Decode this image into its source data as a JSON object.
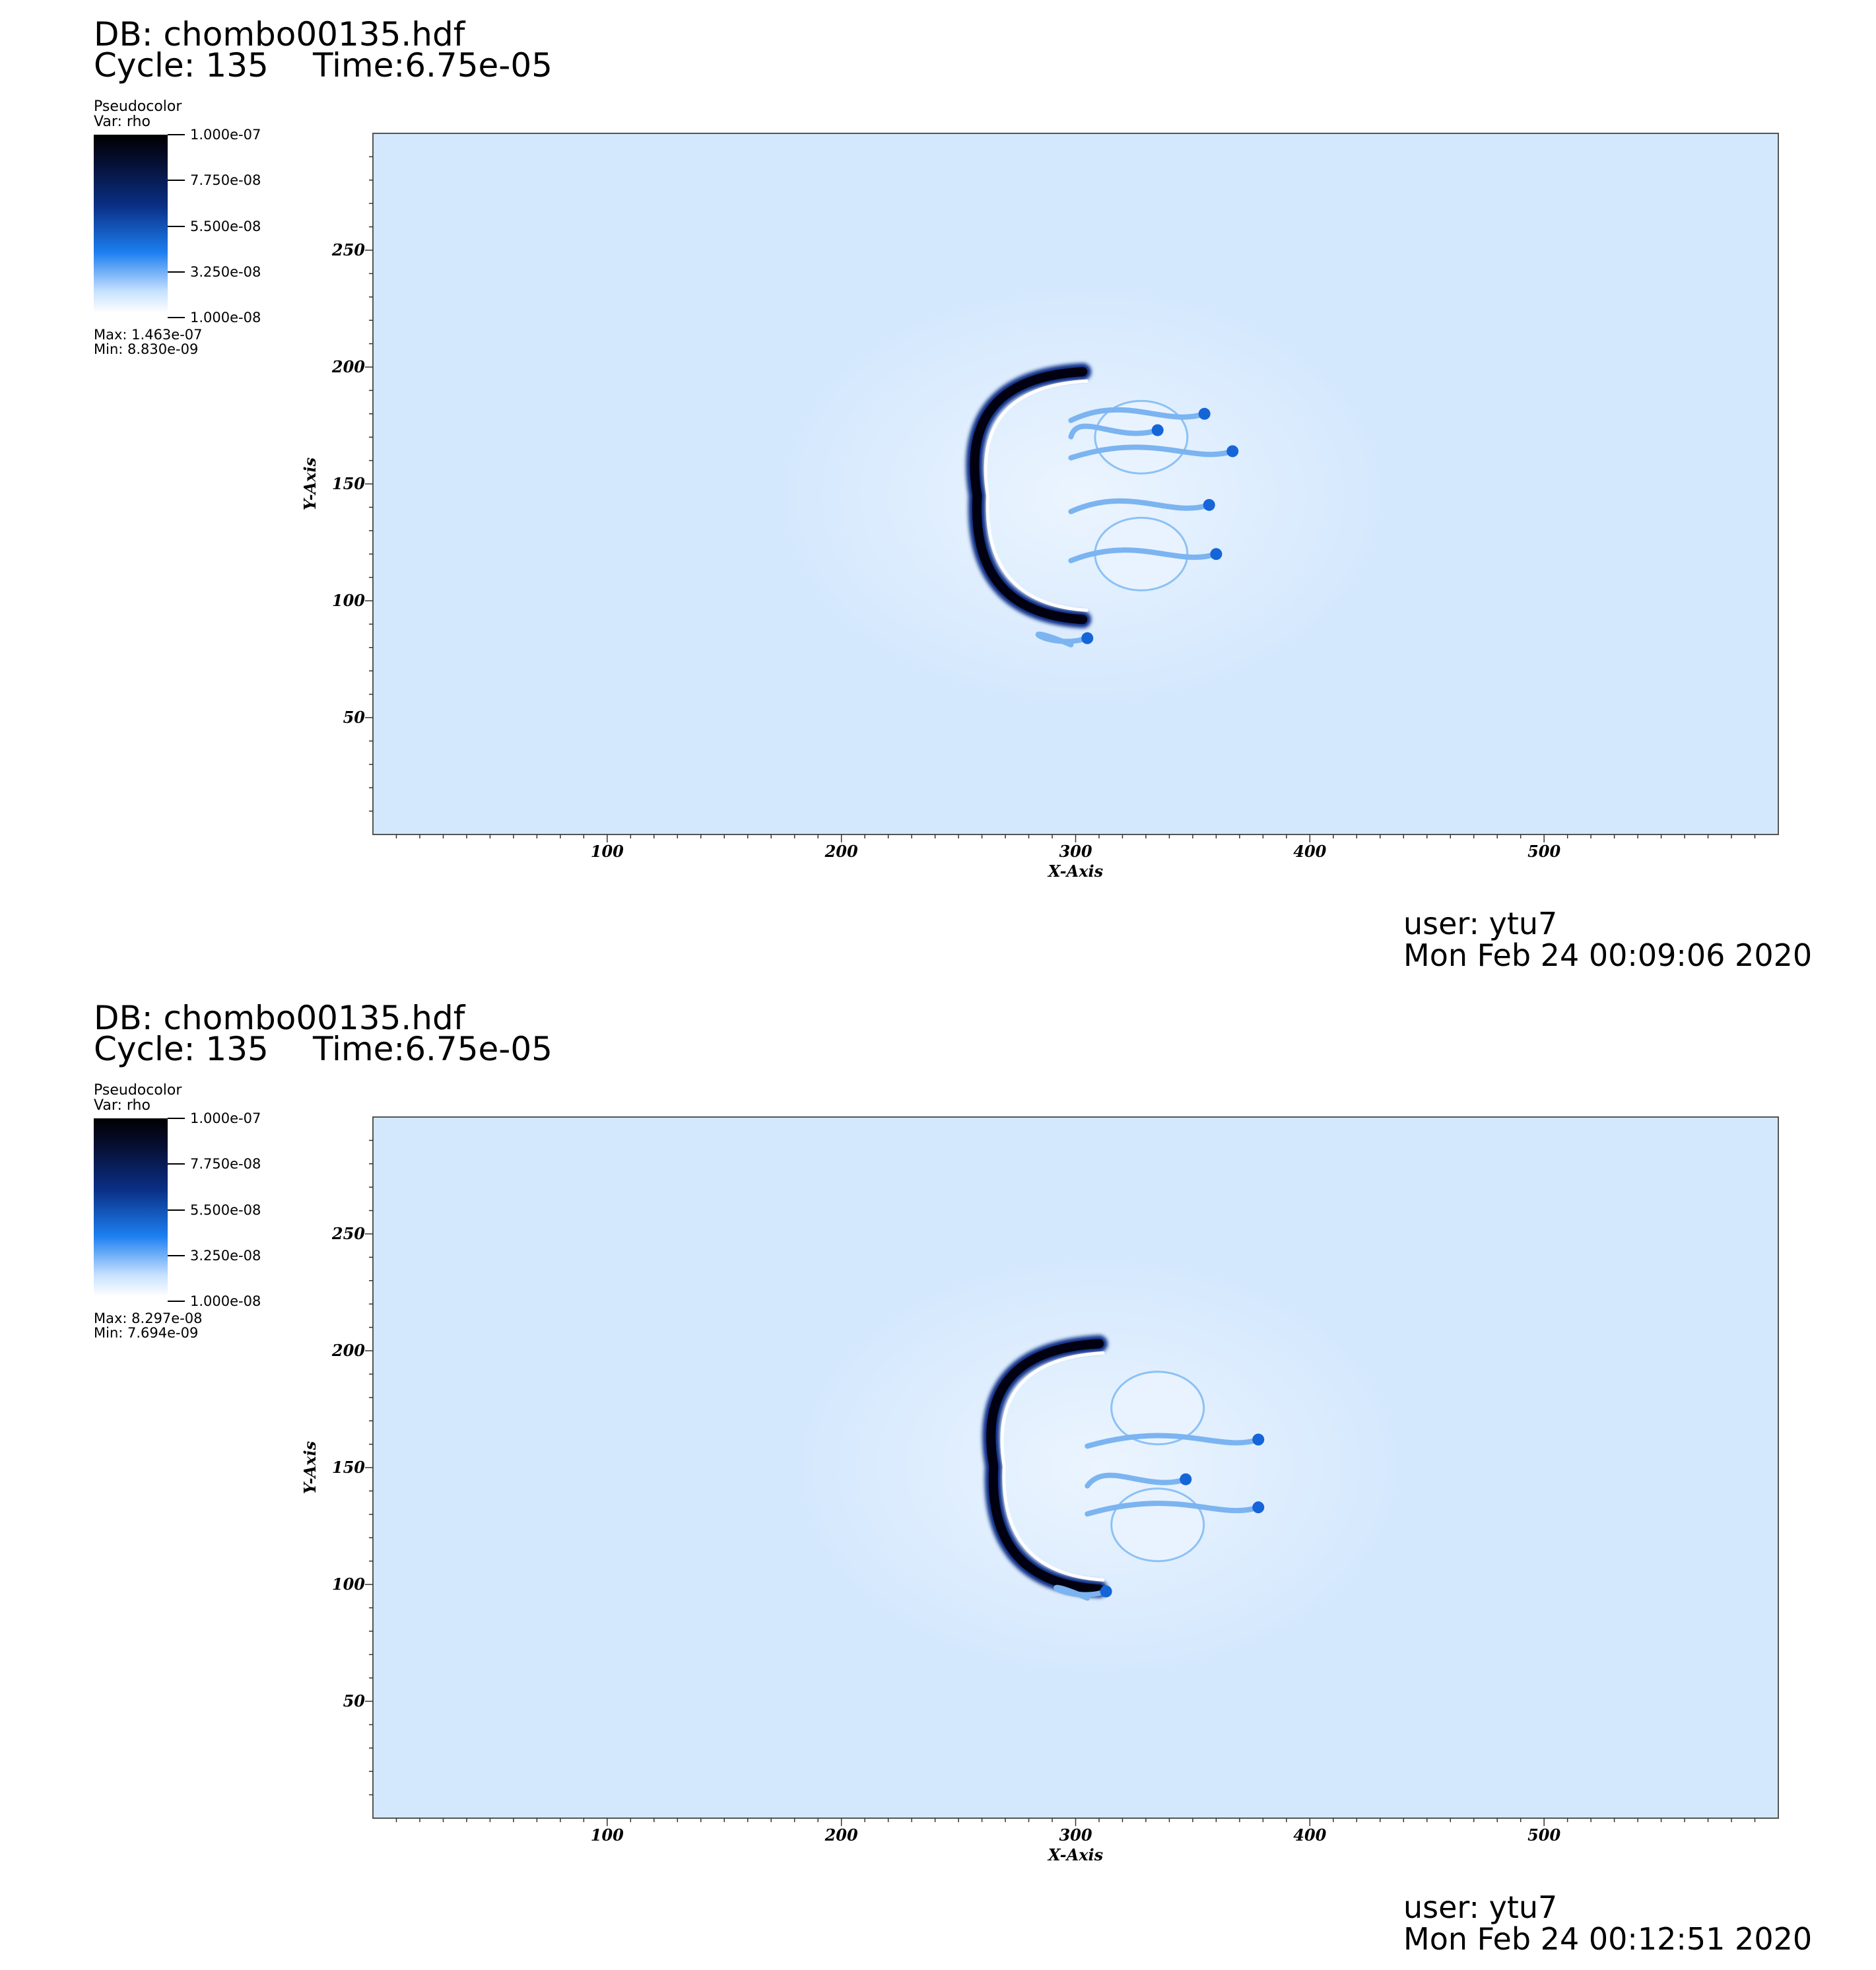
{
  "panels": [
    {
      "db": "DB: chombo00135.hdf",
      "cycle": "Cycle: 135",
      "time": "Time:6.75e-05",
      "legend": {
        "plot_type": "Pseudocolor",
        "var": "Var: rho",
        "ticks": [
          "1.000e-07",
          "7.750e-08",
          "5.500e-08",
          "3.250e-08",
          "1.000e-08"
        ],
        "max": "Max:  1.463e-07",
        "min": "Min:  8.830e-09"
      },
      "user": "user: ytu7",
      "date": "Mon Feb 24 00:09:06 2020"
    },
    {
      "db": "DB: chombo00135.hdf",
      "cycle": "Cycle: 135",
      "time": "Time:6.75e-05",
      "legend": {
        "plot_type": "Pseudocolor",
        "var": "Var: rho",
        "ticks": [
          "1.000e-07",
          "7.750e-08",
          "5.500e-08",
          "3.250e-08",
          "1.000e-08"
        ],
        "max": "Max:  8.297e-08",
        "min": "Min:  7.694e-09"
      },
      "user": "user: ytu7",
      "date": "Mon Feb 24 00:12:51 2020"
    }
  ],
  "chart_data": [
    {
      "type": "heatmap",
      "variable": "rho",
      "colormap": [
        "#ffffff",
        "#1c7ff0",
        "#0a2f86",
        "#000000"
      ],
      "background_color": "#d4e8fd",
      "xlabel": "X-Axis",
      "ylabel": "Y-Axis",
      "xlim": [
        0,
        600
      ],
      "ylim": [
        0,
        300
      ],
      "xticks": [
        100,
        200,
        300,
        400,
        500
      ],
      "yticks": [
        50,
        100,
        150,
        200,
        250
      ],
      "colorbar_range": [
        1e-08,
        1e-07
      ],
      "data_max": 1.463e-07,
      "data_min": 8.83e-09,
      "features": {
        "front_x": 258,
        "front_y_range": [
          92,
          198
        ],
        "fingers": [
          [
            335,
            173
          ],
          [
            355,
            180
          ],
          [
            367,
            164
          ],
          [
            357,
            141
          ],
          [
            360,
            120
          ],
          [
            305,
            84
          ]
        ]
      }
    },
    {
      "type": "heatmap",
      "variable": "rho",
      "colormap": [
        "#ffffff",
        "#1c7ff0",
        "#0a2f86",
        "#000000"
      ],
      "background_color": "#d4e8fd",
      "xlabel": "X-Axis",
      "ylabel": "Y-Axis",
      "xlim": [
        0,
        600
      ],
      "ylim": [
        0,
        300
      ],
      "xticks": [
        100,
        200,
        300,
        400,
        500
      ],
      "yticks": [
        50,
        100,
        150,
        200,
        250
      ],
      "colorbar_range": [
        1e-08,
        1e-07
      ],
      "data_max": 8.297e-08,
      "data_min": 7.694e-09,
      "features": {
        "front_x": 265,
        "front_y_range": [
          98,
          203
        ],
        "fingers": [
          [
            378,
            162
          ],
          [
            378,
            133
          ],
          [
            347,
            145
          ],
          [
            313,
            97
          ]
        ]
      }
    }
  ]
}
